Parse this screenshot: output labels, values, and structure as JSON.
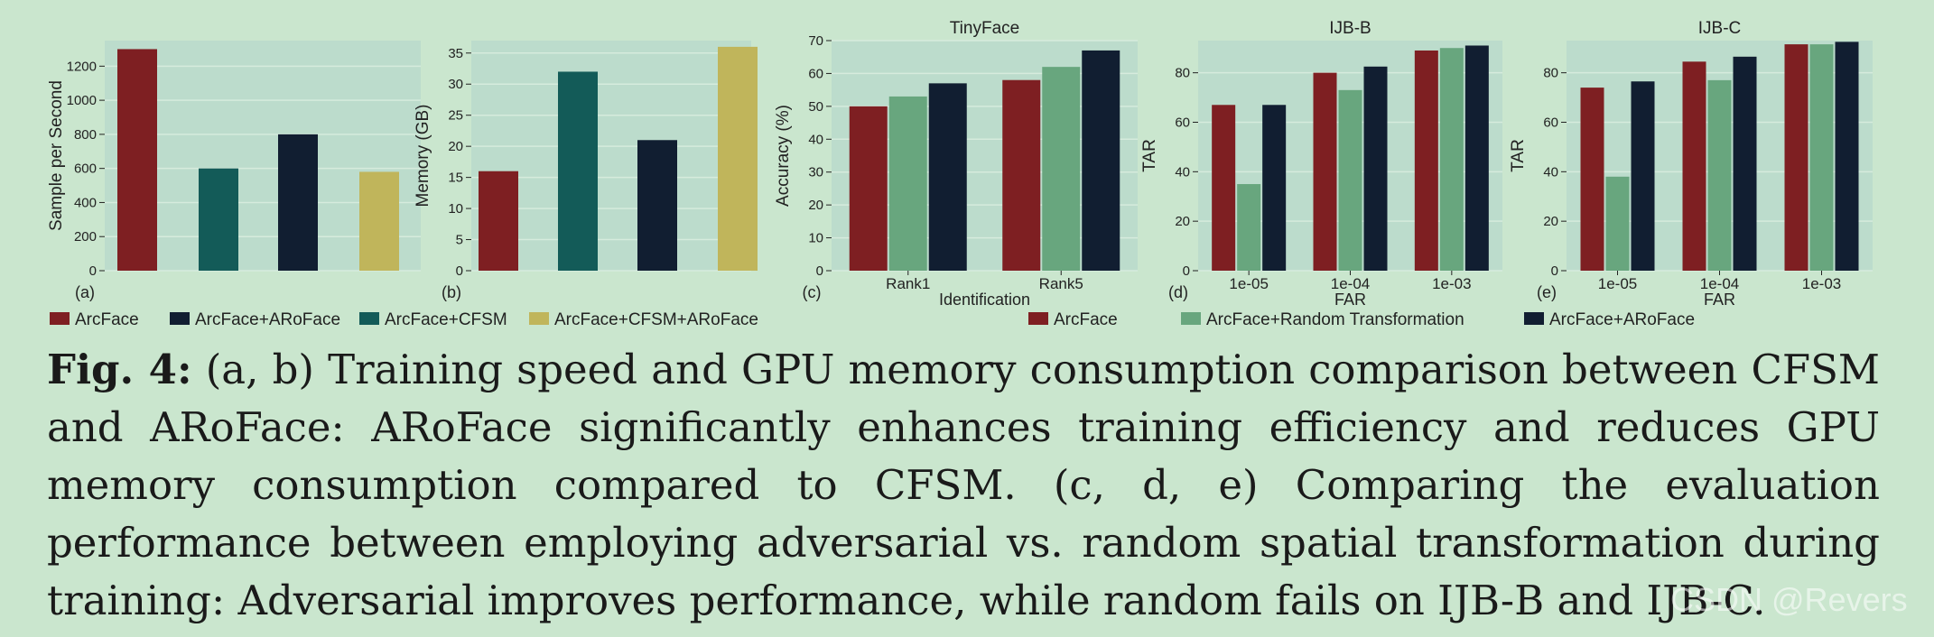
{
  "figure": {
    "label": "Fig. 4:",
    "caption_text": " (a, b) Training speed and GPU memory consumption comparison between CFSM and ARoFace: ARoFace significantly enhances training efficiency and reduces GPU memory consumption compared to CFSM. (c, d, e) Comparing the evaluation performance between employing adversarial vs. random spatial transformation during training: Adversarial improves performance, while random fails on IJB-B and IJB-C.",
    "watermark": "CSDN @Revers"
  },
  "colors": {
    "arcface": "#7e1f22",
    "cfsm": "#135b58",
    "aroface": "#111e31",
    "cfsm_aroface": "#c0b55b",
    "random": "#68a67e",
    "plot_bg": "#bcdccc",
    "grid": "#d6ebdd"
  },
  "legend_ab": [
    {
      "label": "ArcFace",
      "color": "#7e1f22"
    },
    {
      "label": "ArcFace+ARoFace",
      "color": "#111e31"
    },
    {
      "label": "ArcFace+CFSM",
      "color": "#135b58"
    },
    {
      "label": "ArcFace+CFSM+ARoFace",
      "color": "#c0b55b"
    }
  ],
  "legend_cde": [
    {
      "label": "ArcFace",
      "color": "#7e1f22"
    },
    {
      "label": "ArcFace+Random Transformation",
      "color": "#68a67e"
    },
    {
      "label": "ArcFace+ARoFace",
      "color": "#111e31"
    }
  ],
  "chart_data": [
    {
      "type": "bar",
      "panel": "(a)",
      "title": "",
      "xlabel": "",
      "ylabel": "Sample per Second",
      "ylim": [
        0,
        1350
      ],
      "yticks": [
        0,
        200,
        400,
        600,
        800,
        1000,
        1200
      ],
      "categories": [
        ""
      ],
      "series": [
        {
          "name": "ArcFace",
          "color": "#7e1f22",
          "values": [
            1300
          ]
        },
        {
          "name": "ArcFace+CFSM",
          "color": "#135b58",
          "values": [
            600
          ]
        },
        {
          "name": "ArcFace+ARoFace",
          "color": "#111e31",
          "values": [
            800
          ]
        },
        {
          "name": "ArcFace+CFSM+ARoFace",
          "color": "#c0b55b",
          "values": [
            580
          ]
        }
      ]
    },
    {
      "type": "bar",
      "panel": "(b)",
      "title": "",
      "xlabel": "",
      "ylabel": "Memory (GB)",
      "ylim": [
        0,
        37
      ],
      "yticks": [
        0,
        5,
        10,
        15,
        20,
        25,
        30,
        35
      ],
      "categories": [
        ""
      ],
      "series": [
        {
          "name": "ArcFace",
          "color": "#7e1f22",
          "values": [
            16
          ]
        },
        {
          "name": "ArcFace+CFSM",
          "color": "#135b58",
          "values": [
            32
          ]
        },
        {
          "name": "ArcFace+ARoFace",
          "color": "#111e31",
          "values": [
            21
          ]
        },
        {
          "name": "ArcFace+CFSM+ARoFace",
          "color": "#c0b55b",
          "values": [
            36
          ]
        }
      ]
    },
    {
      "type": "bar",
      "panel": "(c)",
      "title": "TinyFace",
      "xlabel": "Identification",
      "ylabel": "Accuracy (%)",
      "ylim": [
        0,
        70
      ],
      "yticks": [
        0,
        10,
        20,
        30,
        40,
        50,
        60,
        70
      ],
      "categories": [
        "Rank1",
        "Rank5"
      ],
      "series": [
        {
          "name": "ArcFace",
          "color": "#7e1f22",
          "values": [
            50,
            58
          ]
        },
        {
          "name": "ArcFace+Random Transformation",
          "color": "#68a67e",
          "values": [
            53,
            62
          ]
        },
        {
          "name": "ArcFace+ARoFace",
          "color": "#111e31",
          "values": [
            57,
            67
          ]
        }
      ]
    },
    {
      "type": "bar",
      "panel": "(d)",
      "title": "IJB-B",
      "xlabel": "FAR",
      "ylabel": "TAR",
      "ylim": [
        0,
        93
      ],
      "yticks": [
        0,
        20,
        40,
        60,
        80
      ],
      "categories": [
        "1e-05",
        "1e-04",
        "1e-03"
      ],
      "series": [
        {
          "name": "ArcFace",
          "color": "#7e1f22",
          "values": [
            67,
            80,
            89
          ]
        },
        {
          "name": "ArcFace+Random Transformation",
          "color": "#68a67e",
          "values": [
            35,
            73,
            90
          ]
        },
        {
          "name": "ArcFace+ARoFace",
          "color": "#111e31",
          "values": [
            67,
            82.5,
            91
          ]
        }
      ]
    },
    {
      "type": "bar",
      "panel": "(e)",
      "title": "IJB-C",
      "xlabel": "FAR",
      "ylabel": "TAR",
      "ylim": [
        0,
        93
      ],
      "yticks": [
        0,
        20,
        40,
        60,
        80
      ],
      "categories": [
        "1e-05",
        "1e-04",
        "1e-03"
      ],
      "series": [
        {
          "name": "ArcFace",
          "color": "#7e1f22",
          "values": [
            74,
            84.5,
            91.5
          ]
        },
        {
          "name": "ArcFace+Random Transformation",
          "color": "#68a67e",
          "values": [
            38,
            77,
            91.5
          ]
        },
        {
          "name": "ArcFace+ARoFace",
          "color": "#111e31",
          "values": [
            76.5,
            86.5,
            92.5
          ]
        }
      ]
    }
  ]
}
